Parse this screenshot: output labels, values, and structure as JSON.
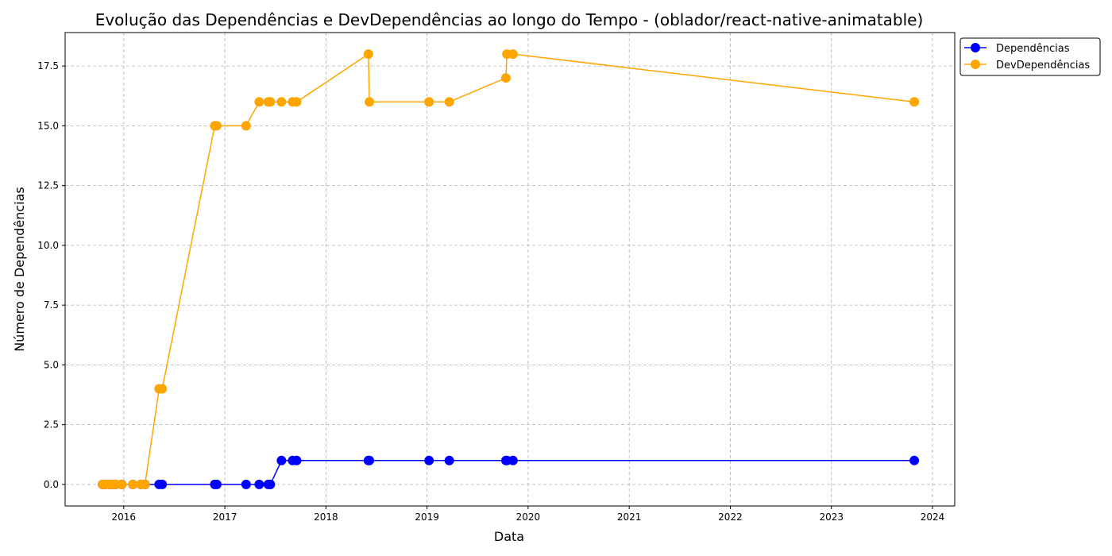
{
  "chart_data": {
    "type": "line",
    "title": "Evolução das Dependências e DevDependências ao longo do Tempo - (oblador/react-native-animatable)",
    "xlabel": "Data",
    "ylabel": "Número de Dependências",
    "grid": true,
    "legend_position": "top-right, outside plot",
    "xlim": [
      2015.42,
      2024.22
    ],
    "ylim": [
      -0.9,
      18.9
    ],
    "x_ticks": [
      "2016",
      "2017",
      "2018",
      "2019",
      "2020",
      "2021",
      "2022",
      "2023",
      "2024"
    ],
    "y_ticks": [
      "0.0",
      "2.5",
      "5.0",
      "7.5",
      "10.0",
      "12.5",
      "15.0",
      "17.5"
    ],
    "x_tick_values": [
      2016,
      2017,
      2018,
      2019,
      2020,
      2021,
      2022,
      2023,
      2024
    ],
    "y_tick_values": [
      0,
      2.5,
      5,
      7.5,
      10,
      12.5,
      15,
      17.5
    ],
    "x": [
      2015.79,
      2015.82,
      2015.86,
      2015.89,
      2015.92,
      2015.98,
      2016.09,
      2016.17,
      2016.21,
      2016.35,
      2016.38,
      2016.9,
      2016.92,
      2017.21,
      2017.34,
      2017.43,
      2017.45,
      2017.56,
      2017.67,
      2017.71,
      2018.42,
      2018.43,
      2019.02,
      2019.22,
      2019.78,
      2019.79,
      2019.85,
      2023.82
    ],
    "series": [
      {
        "name": "Dependências",
        "color": "#0000ff",
        "values": [
          0,
          0,
          0,
          0,
          0,
          0,
          0,
          0,
          0,
          0,
          0,
          0,
          0,
          0,
          0,
          0,
          0,
          1,
          1,
          1,
          1,
          1,
          1,
          1,
          1,
          1,
          1,
          1
        ]
      },
      {
        "name": "DevDependências",
        "color": "#ffa500",
        "values": [
          0,
          0,
          0,
          0,
          0,
          0,
          0,
          0,
          0,
          4,
          4,
          15,
          15,
          15,
          16,
          16,
          16,
          16,
          16,
          16,
          18,
          16,
          16,
          16,
          17,
          18,
          18,
          16
        ]
      }
    ]
  }
}
